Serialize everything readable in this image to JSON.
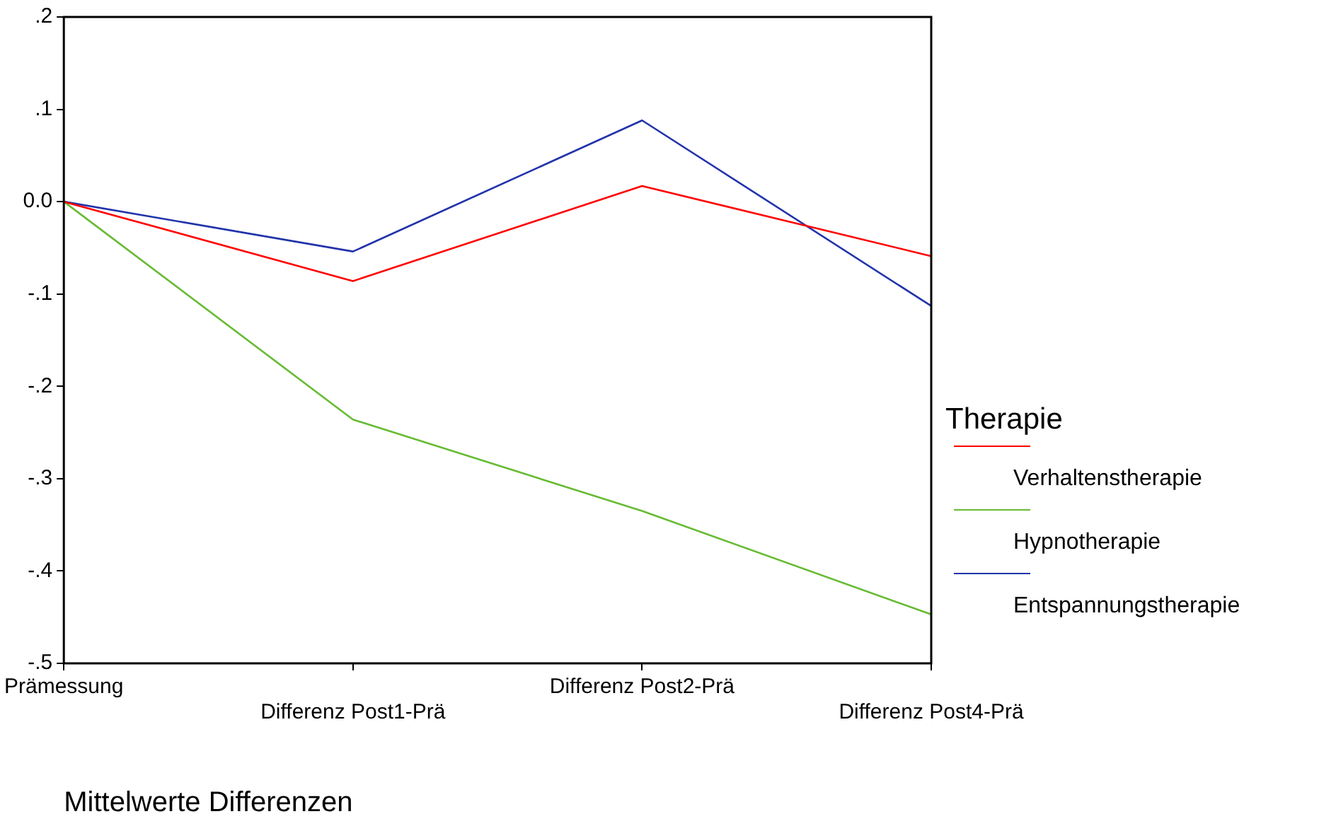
{
  "chart_data": {
    "type": "line",
    "xlabel": "Mittelwerte Differenzen",
    "legend_title": "Therapie",
    "legend": "right",
    "grid": false,
    "marker": "none",
    "line_style": "solid",
    "categories": [
      "Prämessung",
      "Differenz Post1-Prä",
      "Differenz Post2-Prä",
      "Differenz Post4-Prä"
    ],
    "ylim": [
      -0.5,
      0.2
    ],
    "yticks": [
      {
        "value": -0.5,
        "label": "-.5"
      },
      {
        "value": -0.4,
        "label": "-.4"
      },
      {
        "value": -0.3,
        "label": "-.3"
      },
      {
        "value": -0.2,
        "label": "-.2"
      },
      {
        "value": -0.1,
        "label": "-.1"
      },
      {
        "value": 0,
        "label": "0.0"
      },
      {
        "value": 0.1,
        "label": ".1"
      },
      {
        "value": 0.2,
        "label": ".2"
      }
    ],
    "series": [
      {
        "name": "Verhaltenstherapie",
        "color": "#ff0000",
        "values": [
          0,
          -0.086,
          0.017,
          -0.059
        ]
      },
      {
        "name": "Hypnotherapie",
        "color": "#66bb33",
        "values": [
          0,
          -0.236,
          -0.335,
          -0.447
        ]
      },
      {
        "name": "Entspannungstherapie",
        "color": "#2233aa",
        "values": [
          0,
          -0.054,
          0.088,
          -0.113
        ]
      }
    ]
  }
}
